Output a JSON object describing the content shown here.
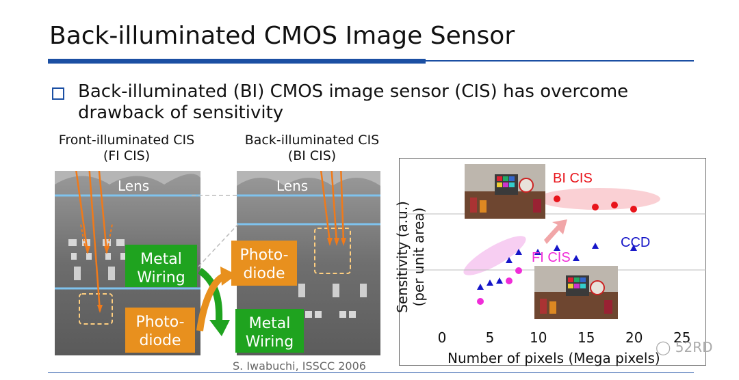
{
  "slide": {
    "title": "Back-illuminated CMOS Image Sensor",
    "bullet": "Back-illuminated (BI) CMOS image sensor (CIS) has overcome drawback of sensitivity"
  },
  "figure": {
    "fi_caption_line1": "Front-illuminated CIS",
    "fi_caption_line2": "(FI CIS)",
    "bi_caption_line1": "Back-illuminated CIS",
    "bi_caption_line2": "(BI CIS)",
    "fi_lens": "Lens",
    "bi_lens": "Lens",
    "fi_metal_wiring": [
      "Metal",
      "Wiring"
    ],
    "fi_photodiode": [
      "Photo-",
      "diode"
    ],
    "bi_photodiode": [
      "Photo-",
      "diode"
    ],
    "bi_metal_wiring": [
      "Metal",
      "Wiring"
    ],
    "credit": "S. Iwabuchi, ISSCC 2006",
    "colors": {
      "orange_box": "#e8901e",
      "green_box": "#1fa31f",
      "lens_line": "#7fc3ee",
      "ray": "#f07a1a"
    }
  },
  "chart_data": {
    "type": "scatter",
    "xlabel": "Number of pixels (Mega pixels)",
    "ylabel": [
      "Sensitivity (a.u.)",
      "(per unit area)"
    ],
    "xlim": [
      0,
      25
    ],
    "x_ticks": [
      "0",
      "5",
      "10",
      "15",
      "20",
      "25"
    ],
    "grid": "horizontal",
    "series": [
      {
        "name": "BI CIS",
        "marker": "circle",
        "color": "#e8141b",
        "points": [
          [
            12,
            0.8
          ],
          [
            16,
            0.76
          ],
          [
            18,
            0.77
          ],
          [
            20,
            0.75
          ]
        ]
      },
      {
        "name": "CCD",
        "marker": "triangle",
        "color": "#1515c8",
        "points": [
          [
            4,
            0.37
          ],
          [
            5,
            0.39
          ],
          [
            6,
            0.4
          ],
          [
            7,
            0.5
          ],
          [
            8,
            0.54
          ],
          [
            10,
            0.54
          ],
          [
            12,
            0.56
          ],
          [
            14,
            0.51
          ],
          [
            16,
            0.57
          ],
          [
            20,
            0.56
          ]
        ]
      },
      {
        "name": "FI CIS",
        "marker": "circle",
        "color": "#f02cd8",
        "points": [
          [
            4,
            0.3
          ],
          [
            7,
            0.4
          ],
          [
            8,
            0.45
          ]
        ]
      }
    ]
  },
  "watermark": "52RD"
}
